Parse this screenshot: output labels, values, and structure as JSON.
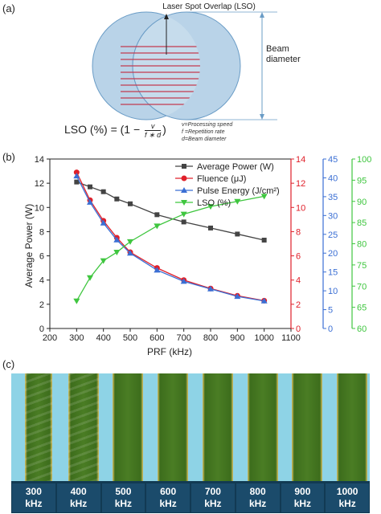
{
  "panels": {
    "a": "(a)",
    "b": "(b)",
    "c": "(c)"
  },
  "diagram": {
    "title": "Laser Spot Overlap (LSO)",
    "beam_label_1": "Beam",
    "beam_label_2": "diameter",
    "formula_lhs": "LSO (%) = (1 −",
    "formula_num": "v",
    "formula_den": "f ∗ d",
    "formula_rhs": ")",
    "legend": [
      "v=Processing speed",
      "f =Repetition rate",
      "d=Beam diameter"
    ],
    "colors": {
      "circle_fill": "#b9d3e8",
      "circle_stroke": "#6a9cc6",
      "hatch": "#c23b50"
    }
  },
  "chart_data": {
    "type": "line",
    "x": [
      300,
      350,
      400,
      450,
      500,
      600,
      700,
      800,
      900,
      1000
    ],
    "xlabel": "PRF (kHz)",
    "xlim": [
      200,
      1100
    ],
    "xticks": [
      200,
      300,
      400,
      500,
      600,
      700,
      800,
      900,
      1000,
      1100
    ],
    "ylabel": "Average Power (W)",
    "ylim": [
      0,
      14
    ],
    "yticks": [
      0,
      2,
      4,
      6,
      8,
      10,
      12,
      14
    ],
    "axes": {
      "fluence": {
        "ylim": [
          0,
          14
        ],
        "ticks": [
          0,
          2,
          4,
          6,
          8,
          10,
          12,
          14
        ],
        "color": "#e0202a"
      },
      "pulse": {
        "ylim": [
          0,
          45
        ],
        "ticks": [
          0,
          5,
          10,
          15,
          20,
          25,
          30,
          35,
          40,
          45
        ],
        "color": "#3b6fd4"
      },
      "lso": {
        "ylim": [
          60,
          100
        ],
        "ticks": [
          60,
          65,
          70,
          75,
          80,
          85,
          90,
          95,
          100
        ],
        "color": "#3fc63f"
      }
    },
    "legend_position": "top-right",
    "series": [
      {
        "name": "Average Power (W)",
        "axis": "power",
        "color": "#444444",
        "marker": "square",
        "values": [
          12.1,
          11.7,
          11.3,
          10.7,
          10.3,
          9.4,
          8.8,
          8.3,
          7.8,
          7.3
        ]
      },
      {
        "name": "Fluence (μJ)",
        "axis": "fluence",
        "color": "#e0202a",
        "marker": "circle",
        "values": [
          12.9,
          10.6,
          8.9,
          7.5,
          6.3,
          5.0,
          4.0,
          3.3,
          2.7,
          2.3
        ]
      },
      {
        "name": "Pulse Energy (J/cm²)",
        "axis": "pulse",
        "color": "#3b6fd4",
        "marker": "triangle-up",
        "values": [
          40.5,
          33.5,
          28.0,
          23.5,
          20.0,
          15.5,
          12.5,
          10.5,
          8.5,
          7.3
        ]
      },
      {
        "name": "LSO (%)",
        "axis": "lso",
        "color": "#3fc63f",
        "marker": "triangle-down",
        "values": [
          66.5,
          72,
          76,
          78,
          80.5,
          84.2,
          87,
          88.8,
          90,
          91.2
        ]
      }
    ]
  },
  "photos": {
    "frequencies": [
      {
        "value": "300",
        "unit": "kHz"
      },
      {
        "value": "400",
        "unit": "kHz"
      },
      {
        "value": "500",
        "unit": "kHz"
      },
      {
        "value": "600",
        "unit": "kHz"
      },
      {
        "value": "700",
        "unit": "kHz"
      },
      {
        "value": "800",
        "unit": "kHz"
      },
      {
        "value": "900",
        "unit": "kHz"
      },
      {
        "value": "1000",
        "unit": "kHz"
      }
    ],
    "colors": {
      "background": "#8ed3e6",
      "stripe": "#3d6d1c",
      "edge": "#d8c060",
      "label_bg": "#1b4b6b"
    }
  }
}
